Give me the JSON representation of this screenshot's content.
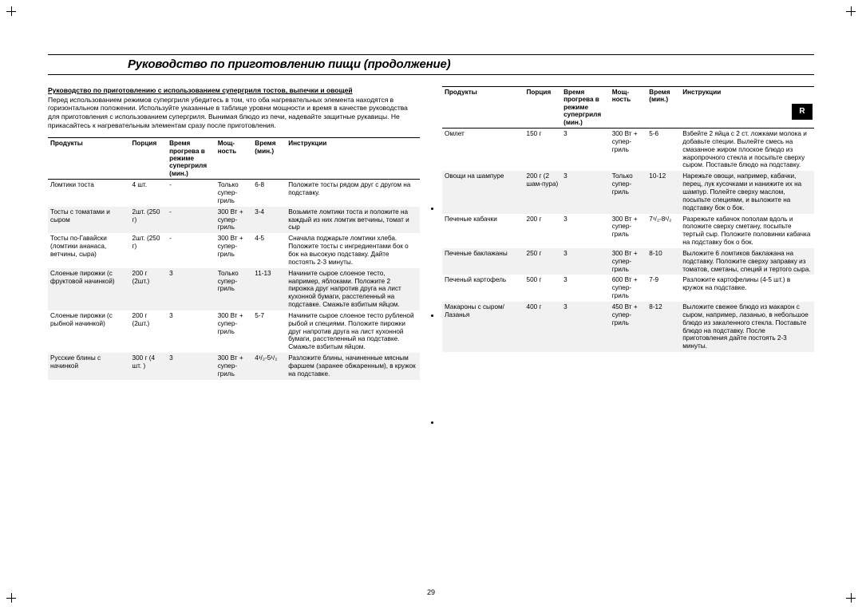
{
  "title": "Руководство по приготовлению пищи (продолжение)",
  "stub": "R",
  "pageNum": "29",
  "intro": {
    "heading": "Руководство по приготовлению с использованием супергриля тостов, выпечки и овощей",
    "body": "Перед использованием режимов супергриля убедитесь в том, что оба нагревательных элемента находятся в горизонтальном положении. Используйте указанные в таблице уровни мощности и время в качестве руководства для приготовления с использованием супергриля. Вынимая блюдо из печи, надевайте защитные рукавицы. Не прикасайтесь к нагревательным элементам сразу после приготовления."
  },
  "headers": {
    "c1": "Продукты",
    "c2": "Порция",
    "c3": "Время прогрева в режиме супергриля (мин.)",
    "c4": "Мощ-ность",
    "c5": "Время (мин.)",
    "c6": "Инструкции"
  },
  "left": [
    {
      "shade": false,
      "c1": "Ломтики тоста",
      "c2": "4 шт.",
      "c3": "-",
      "c4": "Только супер-гриль",
      "c5": "6-8",
      "c6": "Положите тосты рядом друг с другом на подставку."
    },
    {
      "shade": true,
      "c1": "Тосты с томатами и сыром",
      "c2": "2шт. (250 г)",
      "c3": "-",
      "c4": "300 Вт + супер-гриль",
      "c5": "3-4",
      "c6": "Возьмите ломтики тоста и положите на каждый из них ломтик ветчины, томат и сыр"
    },
    {
      "shade": false,
      "c1": "Тосты по-Гавайски (ломтики ананаса, ветчины, сыра)",
      "c2": "2шт. (250 г)",
      "c3": "-",
      "c4": "300 Вт + супер-гриль",
      "c5": "4-5",
      "c6": "Сначала поджарьте ломтики хлеба. Положите тосты с ингредиентами бок о бок на высокую подставку. Дайте постоять 2-3 минуты."
    },
    {
      "shade": true,
      "c1": "Слоеные пирожки (с фруктовой начинкой)",
      "c2": "200 г (2шт.)",
      "c3": "3",
      "c4": "Только супер-гриль",
      "c5": "11-13",
      "c6": "Начините сырое слоеное тесто, например, яблоками. Положите 2 пирожка друг напротив друга на лист кухонной бумаги, расстеленный на подставке. Смажьте взбитым яйцом."
    },
    {
      "shade": false,
      "c1": "Слоеные пирожки (с рыбной начинкой)",
      "c2": "200 г (2шт.)",
      "c3": "3",
      "c4": "300 Вт + супер-гриль",
      "c5": "5-7",
      "c6": "Начините сырое слоеное тесто рубленой рыбой и специями. Положите пирожки друг напротив друга на лист кухонной бумаги, расстеленный на подставке. Смажьте взбитым яйцом."
    },
    {
      "shade": true,
      "c1": "Русские блины с начинкой",
      "c2": "300 г (4 шт. )",
      "c3": "3",
      "c4": "300 Вт + супер-гриль",
      "c5": "4¹/₂-5¹/₂",
      "c6": "Разложите блины, начиненные мясным фаршем (заранее обжаренным), в кружок на подставке."
    }
  ],
  "right": [
    {
      "shade": false,
      "c1": "Омлет",
      "c2": "150 г",
      "c3": "3",
      "c4": "300 Вт + супер-гриль",
      "c5": "5-6",
      "c6": "Взбейте 2 яйца с 2 ст. ложками молока и добавьте специи. Вылейте смесь на смазанное жиром плоское блюдо из жаропрочного стекла и посыпьте сверху сыром. Поставьте блюдо на подставку."
    },
    {
      "shade": true,
      "c1": "Овощи на шампуре",
      "c2": "200 г (2 шам-пура)",
      "c3": "3",
      "c4": "Только супер-гриль",
      "c5": "10-12",
      "c6": "Нарежьте овощи, например, кабачки, перец, лук кусочками и нанижите их на шампур. Полейте сверху маслом, посыпьте специями, и выложите на подставку бок о бок."
    },
    {
      "shade": false,
      "c1": "Печеные кабачки",
      "c2": "200 г",
      "c3": "3",
      "c4": "300 Вт + супер-гриль",
      "c5": "7¹/₂-8¹/₂",
      "c6": "Разрежьте кабачок пополам вдоль и положите сверху сметану, посыпьте тертый сыр. Положите половинки кабачка на подставку бок о бок."
    },
    {
      "shade": true,
      "c1": "Печеные баклажаны",
      "c2": "250 г",
      "c3": "3",
      "c4": "300 Вт + супер-гриль",
      "c5": "8-10",
      "c6": "Выложите 6 ломтиков баклажана на подставку. Положите сверху заправку из томатов, сметаны, специй и тертого сыра."
    },
    {
      "shade": false,
      "c1": "Печеный картофель",
      "c2": "500 г",
      "c3": "3",
      "c4": "600 Вт + супер-гриль",
      "c5": "7-9",
      "c6": "Разложите картофелины (4-5 шт.) в кружок на подставке."
    },
    {
      "shade": true,
      "c1": "Макароны с сыром/ Лазанья",
      "c2": "400 г",
      "c3": "3",
      "c4": "450 Вт + супер-гриль",
      "c5": "8-12",
      "c6": "Выложите свежее блюдо из макарон с сыром, например, лазанью, в небольшое блюдо из закаленного стекла. Поставьте блюдо на подставку. После приготовления дайте постоять 2-3 минуты."
    }
  ]
}
